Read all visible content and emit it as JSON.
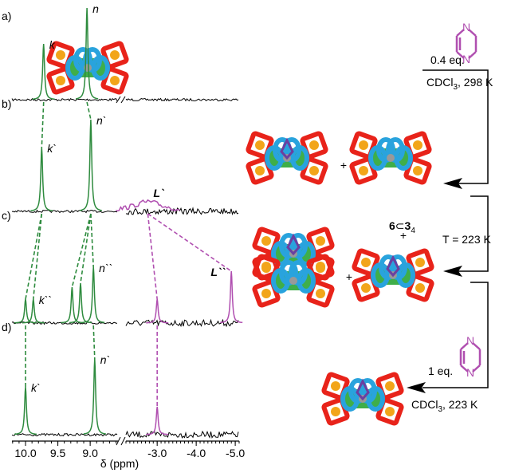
{
  "panels": [
    {
      "label": "a)",
      "peaks": [
        {
          "label": "k",
          "ppm": 9.72,
          "intensity": 70
        },
        {
          "label": "n",
          "ppm": 9.05,
          "intensity": 115
        }
      ]
    },
    {
      "label": "b)",
      "peaks": [
        {
          "label": "k`",
          "ppm": 9.75,
          "intensity": 80
        },
        {
          "label": "n`",
          "ppm": 8.99,
          "intensity": 115
        },
        {
          "label": "L`",
          "ppm": -2.76,
          "intensity": 12,
          "broad": true
        }
      ]
    },
    {
      "label": "c)",
      "peaks": [
        {
          "label": null,
          "ppm": 10.0,
          "intensity": 30
        },
        {
          "label": "k``",
          "ppm": 9.88,
          "intensity": 30
        },
        {
          "label": null,
          "ppm": 9.28,
          "intensity": 45
        },
        {
          "label": null,
          "ppm": 9.15,
          "intensity": 50
        },
        {
          "label": "n``",
          "ppm": 8.95,
          "intensity": 70
        },
        {
          "label": null,
          "ppm": -3.0,
          "intensity": 30
        },
        {
          "label": "L``",
          "ppm": -4.9,
          "intensity": 65
        }
      ]
    },
    {
      "label": "d)",
      "peaks": [
        {
          "label": "k`",
          "ppm": 10.0,
          "intensity": 60
        },
        {
          "label": "n`",
          "ppm": 8.93,
          "intensity": 95
        },
        {
          "label": null,
          "ppm": -3.0,
          "intensity": 35
        }
      ]
    }
  ],
  "axis": {
    "label": "δ (ppm)",
    "segments": [
      {
        "xlim": [
          10.21,
          8.57
        ],
        "ticks": [
          {
            "value": 10,
            "label": "10.0"
          },
          9.5,
          {
            "value": 9,
            "label": "9.0"
          }
        ]
      },
      {
        "xlim": [
          -2.2,
          -5.1
        ],
        "ticks": [
          {
            "value": -3,
            "label": "-3.0"
          },
          {
            "value": -4,
            "label": "-4.0"
          },
          {
            "value": -5,
            "label": "-5.0"
          }
        ]
      }
    ]
  },
  "scheme": {
    "step1": {
      "reagent": "0.4 eq.",
      "solvent": "CDCl",
      "sub": "3",
      "cond": ", 298 K"
    },
    "plus": "+",
    "complex": {
      "host": "6",
      "sym": "⊂",
      "guest": "3",
      "sub": "4"
    },
    "step2": "T = 223 K",
    "step3": {
      "reagent": "1 eq.",
      "solvent": "CDCl",
      "sub": "3",
      "cond": ", 223 K"
    },
    "atom": "N"
  }
}
